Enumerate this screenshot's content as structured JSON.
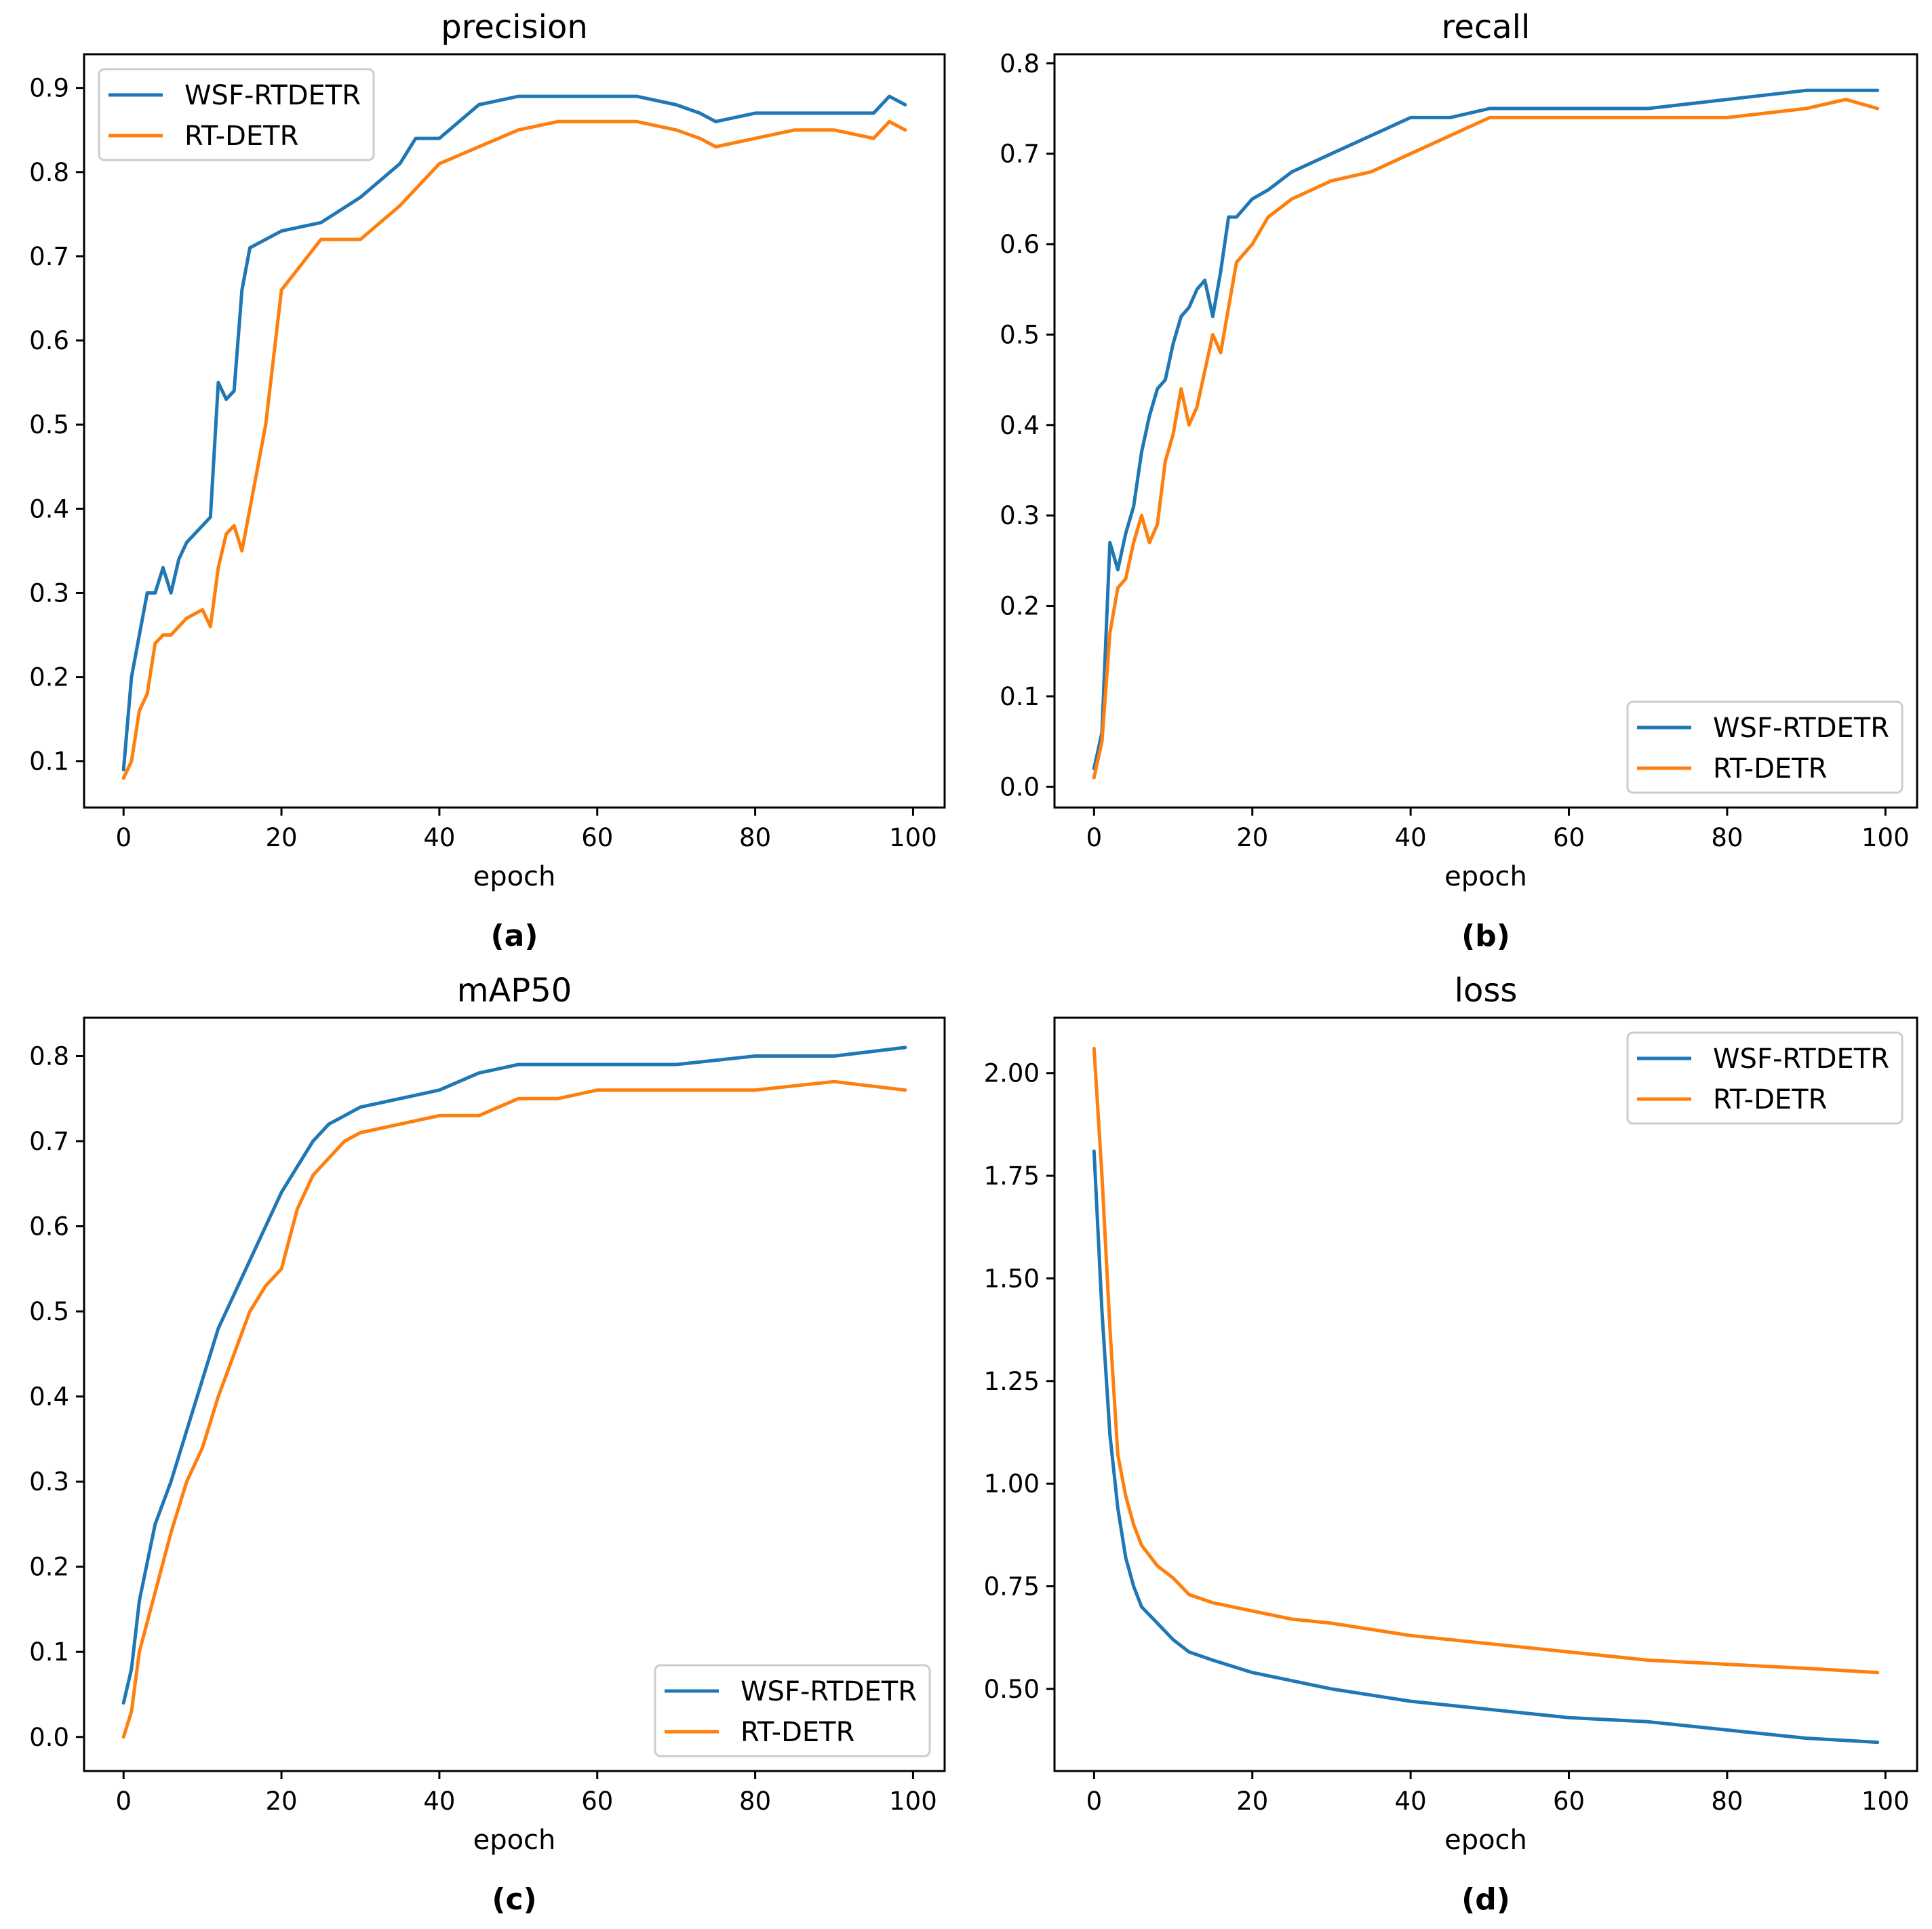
{
  "colors": {
    "WSF-RTDETR": "#1f77b4",
    "RT-DETR": "#ff7f0e"
  },
  "chart_data": [
    {
      "type": "line",
      "title": "precision",
      "xlabel": "epoch",
      "ylabel": "",
      "panel": "(a)",
      "xlim": [
        -5,
        104
      ],
      "ylim": [
        0.045,
        0.94
      ],
      "xticks": [
        0,
        20,
        40,
        60,
        80,
        100
      ],
      "yticks": [
        0.1,
        0.2,
        0.3,
        0.4,
        0.5,
        0.6,
        0.7,
        0.8,
        0.9
      ],
      "ytick_labels": [
        "0.1",
        "0.2",
        "0.3",
        "0.4",
        "0.5",
        "0.6",
        "0.7",
        "0.8",
        "0.9"
      ],
      "legend_loc": "upper left",
      "x": [
        0,
        1,
        2,
        3,
        4,
        5,
        6,
        7,
        8,
        10,
        11,
        12,
        13,
        14,
        15,
        16,
        18,
        20,
        25,
        30,
        35,
        37,
        40,
        45,
        50,
        55,
        60,
        65,
        70,
        73,
        75,
        80,
        85,
        90,
        95,
        97,
        99
      ],
      "series": [
        {
          "name": "WSF-RTDETR",
          "values": [
            0.09,
            0.2,
            0.25,
            0.3,
            0.3,
            0.33,
            0.3,
            0.34,
            0.36,
            0.38,
            0.39,
            0.55,
            0.53,
            0.54,
            0.66,
            0.71,
            0.72,
            0.73,
            0.74,
            0.77,
            0.81,
            0.84,
            0.84,
            0.88,
            0.89,
            0.89,
            0.89,
            0.89,
            0.88,
            0.87,
            0.86,
            0.87,
            0.87,
            0.87,
            0.87,
            0.89,
            0.88
          ]
        },
        {
          "name": "RT-DETR",
          "values": [
            0.08,
            0.1,
            0.16,
            0.18,
            0.24,
            0.25,
            0.25,
            0.26,
            0.27,
            0.28,
            0.26,
            0.33,
            0.37,
            0.38,
            0.35,
            0.4,
            0.5,
            0.66,
            0.72,
            0.72,
            0.76,
            0.78,
            0.81,
            0.83,
            0.85,
            0.86,
            0.86,
            0.86,
            0.85,
            0.84,
            0.83,
            0.84,
            0.85,
            0.85,
            0.84,
            0.86,
            0.85
          ]
        }
      ]
    },
    {
      "type": "line",
      "title": "recall",
      "xlabel": "epoch",
      "ylabel": "",
      "panel": "(b)",
      "xlim": [
        -5,
        104
      ],
      "ylim": [
        -0.023,
        0.81
      ],
      "xticks": [
        0,
        20,
        40,
        60,
        80,
        100
      ],
      "yticks": [
        0.0,
        0.1,
        0.2,
        0.3,
        0.4,
        0.5,
        0.6,
        0.7,
        0.8
      ],
      "ytick_labels": [
        "0.0",
        "0.1",
        "0.2",
        "0.3",
        "0.4",
        "0.5",
        "0.6",
        "0.7",
        "0.8"
      ],
      "legend_loc": "lower right",
      "x": [
        0,
        1,
        2,
        3,
        4,
        5,
        6,
        7,
        8,
        9,
        10,
        11,
        12,
        13,
        14,
        15,
        16,
        17,
        18,
        20,
        22,
        25,
        30,
        35,
        40,
        45,
        50,
        55,
        60,
        70,
        80,
        90,
        95,
        99
      ],
      "series": [
        {
          "name": "WSF-RTDETR",
          "values": [
            0.02,
            0.06,
            0.27,
            0.24,
            0.28,
            0.31,
            0.37,
            0.41,
            0.44,
            0.45,
            0.49,
            0.52,
            0.53,
            0.55,
            0.56,
            0.52,
            0.57,
            0.63,
            0.63,
            0.65,
            0.66,
            0.68,
            0.7,
            0.72,
            0.74,
            0.74,
            0.75,
            0.75,
            0.75,
            0.75,
            0.76,
            0.77,
            0.77,
            0.77
          ]
        },
        {
          "name": "RT-DETR",
          "values": [
            0.01,
            0.05,
            0.17,
            0.22,
            0.23,
            0.27,
            0.3,
            0.27,
            0.29,
            0.36,
            0.39,
            0.44,
            0.4,
            0.42,
            0.46,
            0.5,
            0.48,
            0.53,
            0.58,
            0.6,
            0.63,
            0.65,
            0.67,
            0.68,
            0.7,
            0.72,
            0.74,
            0.74,
            0.74,
            0.74,
            0.74,
            0.75,
            0.76,
            0.75
          ]
        }
      ]
    },
    {
      "type": "line",
      "title": "mAP50",
      "xlabel": "epoch",
      "ylabel": "",
      "panel": "(c)",
      "xlim": [
        -5,
        104
      ],
      "ylim": [
        -0.04,
        0.845
      ],
      "xticks": [
        0,
        20,
        40,
        60,
        80,
        100
      ],
      "yticks": [
        0.0,
        0.1,
        0.2,
        0.3,
        0.4,
        0.5,
        0.6,
        0.7,
        0.8
      ],
      "ytick_labels": [
        "0.0",
        "0.1",
        "0.2",
        "0.3",
        "0.4",
        "0.5",
        "0.6",
        "0.7",
        "0.8"
      ],
      "legend_loc": "lower right",
      "x": [
        0,
        1,
        2,
        4,
        6,
        8,
        10,
        12,
        14,
        16,
        18,
        20,
        22,
        24,
        26,
        28,
        30,
        35,
        40,
        45,
        50,
        55,
        60,
        70,
        80,
        90,
        99
      ],
      "series": [
        {
          "name": "WSF-RTDETR",
          "values": [
            0.04,
            0.08,
            0.16,
            0.25,
            0.3,
            0.36,
            0.42,
            0.48,
            0.52,
            0.56,
            0.6,
            0.64,
            0.67,
            0.7,
            0.72,
            0.73,
            0.74,
            0.75,
            0.76,
            0.78,
            0.79,
            0.79,
            0.79,
            0.79,
            0.8,
            0.8,
            0.81
          ]
        },
        {
          "name": "RT-DETR",
          "values": [
            0.0,
            0.03,
            0.1,
            0.17,
            0.24,
            0.3,
            0.34,
            0.4,
            0.45,
            0.5,
            0.53,
            0.55,
            0.62,
            0.66,
            0.68,
            0.7,
            0.71,
            0.72,
            0.73,
            0.73,
            0.75,
            0.75,
            0.76,
            0.76,
            0.76,
            0.77,
            0.76
          ]
        }
      ]
    },
    {
      "type": "line",
      "title": "loss",
      "xlabel": "epoch",
      "ylabel": "",
      "panel": "(d)",
      "xlim": [
        -5,
        104
      ],
      "ylim": [
        0.3,
        2.135
      ],
      "xticks": [
        0,
        20,
        40,
        60,
        80,
        100
      ],
      "yticks": [
        0.5,
        0.75,
        1.0,
        1.25,
        1.5,
        1.75,
        2.0
      ],
      "ytick_labels": [
        "0.50",
        "0.75",
        "1.00",
        "1.25",
        "1.50",
        "1.75",
        "2.00"
      ],
      "legend_loc": "upper right",
      "x": [
        0,
        1,
        2,
        3,
        4,
        5,
        6,
        8,
        10,
        12,
        15,
        20,
        25,
        30,
        40,
        50,
        60,
        70,
        80,
        90,
        99
      ],
      "series": [
        {
          "name": "WSF-RTDETR",
          "values": [
            1.81,
            1.42,
            1.12,
            0.94,
            0.82,
            0.75,
            0.7,
            0.66,
            0.62,
            0.59,
            0.57,
            0.54,
            0.52,
            0.5,
            0.47,
            0.45,
            0.43,
            0.42,
            0.4,
            0.38,
            0.37
          ]
        },
        {
          "name": "RT-DETR",
          "values": [
            2.06,
            1.75,
            1.38,
            1.07,
            0.97,
            0.9,
            0.85,
            0.8,
            0.77,
            0.73,
            0.71,
            0.69,
            0.67,
            0.66,
            0.63,
            0.61,
            0.59,
            0.57,
            0.56,
            0.55,
            0.54
          ]
        }
      ]
    }
  ]
}
